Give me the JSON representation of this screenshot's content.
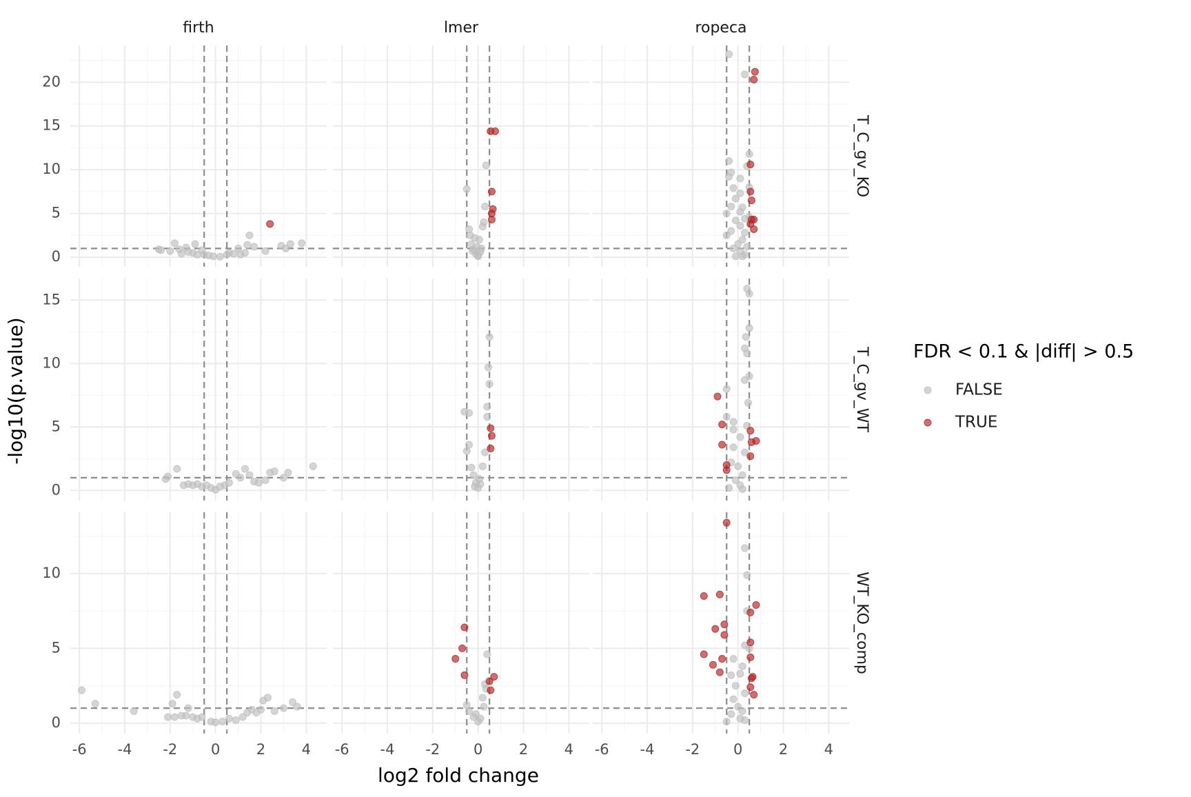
{
  "chart_data": {
    "type": "scatter",
    "x_label": "log2 fold change",
    "y_label": "-log10(p.value)",
    "legend_title": "FDR < 0.1 & |diff| > 0.5",
    "legend_position": "right",
    "grid": true,
    "series": [
      {
        "name": "FALSE",
        "color": "#bebebe"
      },
      {
        "name": "TRUE",
        "color": "#b22222"
      }
    ],
    "columns": [
      "firth",
      "lmer",
      "ropeca"
    ],
    "xlim": [
      -6.4,
      4.9
    ],
    "xticks": [
      -6,
      -4,
      -2,
      0,
      2,
      4
    ],
    "vlines": [
      -0.5,
      0.5
    ],
    "hline": 1,
    "rows": [
      {
        "label": "T_C_gv_KO",
        "ylim": [
          -1.1,
          24.2
        ],
        "yticks": [
          0,
          5,
          10,
          15,
          20
        ],
        "panels": [
          {
            "series": [
              {
                "x": [
                  -2.5,
                  -2.4,
                  -2,
                  -1.8,
                  -1.6,
                  -1.5,
                  -1.3,
                  -1.2,
                  -1,
                  -0.9,
                  -0.8,
                  -0.6,
                  -0.5,
                  -0.3,
                  -0.1,
                  0.2,
                  0.5,
                  0.6,
                  0.8,
                  1,
                  1.1,
                  1.3,
                  1.4,
                  1.5,
                  1.7,
                  2.2,
                  2.9,
                  3.1,
                  3.3,
                  3.8
                ],
                "values": [
                  0.9,
                  0.8,
                  0.7,
                  1.6,
                  0.9,
                  0.4,
                  1.1,
                  0.6,
                  0.5,
                  1.5,
                  0.3,
                  0.8,
                  0.3,
                  0.2,
                  0.1,
                  0.05,
                  0.3,
                  0.5,
                  0.4,
                  1,
                  0.3,
                  0.5,
                  1.4,
                  2.5,
                  1.2,
                  0.7,
                  1.3,
                  1,
                  1.5,
                  1.6
                ]
              },
              {
                "x": [
                  2.4
                ],
                "values": [
                  3.8
                ]
              }
            ]
          },
          {
            "series": [
              {
                "x": [
                  -0.5,
                  -0.4,
                  -0.35,
                  -0.3,
                  -0.2,
                  -0.1,
                  0,
                  0,
                  -0.05,
                  0.05,
                  0.1,
                  0.2,
                  0.25,
                  0.3,
                  0.35,
                  -0.15,
                  0.15,
                  -0.25
                ],
                "values": [
                  7.8,
                  3.2,
                  2.5,
                  1.5,
                  0.9,
                  0.4,
                  0.2,
                  0.1,
                  1.2,
                  2,
                  0.6,
                  3.5,
                  4,
                  5.8,
                  10.5,
                  2.2,
                  1,
                  0.7
                ]
              },
              {
                "x": [
                  0.55,
                  0.75,
                  0.6,
                  0.65,
                  0.6,
                  0.6
                ],
                "values": [
                  14.4,
                  14.4,
                  7.5,
                  5.5,
                  5,
                  4.3
                ]
              }
            ]
          },
          {
            "series": [
              {
                "x": [
                  -0.4,
                  0.3,
                  -0.4,
                  0.5,
                  0.4,
                  -0.3,
                  -0.4,
                  0.1,
                  -0.2,
                  0.5,
                  0.1,
                  -0.1,
                  0.2,
                  -0.3,
                  0.1,
                  -0.5,
                  0.3,
                  0.5,
                  -0.1,
                  0.1,
                  -0.3,
                  0.3,
                  -0.5,
                  0.2,
                  0,
                  -0.2,
                  0.1,
                  0.3,
                  -0.1,
                  0.2,
                  0.4
                ],
                "values": [
                  23.2,
                  20.9,
                  11,
                  11.8,
                  10.4,
                  9.7,
                  9.2,
                  9,
                  7.9,
                  8,
                  7.3,
                  6.7,
                  5.7,
                  5.8,
                  5.2,
                  5,
                  4.4,
                  4.6,
                  4.2,
                  3.6,
                  3,
                  2.8,
                  2.5,
                  2,
                  1.5,
                  1,
                  0.7,
                  0.3,
                  0.1,
                  0.1,
                  1.2
                ]
              },
              {
                "x": [
                  0.75,
                  0.7,
                  0.55,
                  0.55,
                  0.6,
                  0.7,
                  0.6,
                  0.55,
                  0.7
                ],
                "values": [
                  21.2,
                  20.3,
                  10.6,
                  7.5,
                  6.5,
                  4.3,
                  4.3,
                  3.8,
                  3.2
                ]
              }
            ]
          }
        ]
      },
      {
        "label": "T_C_gv_WT",
        "ylim": [
          -0.8,
          16.7
        ],
        "yticks": [
          0,
          5,
          10,
          15
        ],
        "panels": [
          {
            "series": [
              {
                "x": [
                  -2.2,
                  -2.1,
                  -1.7,
                  -1.4,
                  -1.2,
                  -1,
                  -0.8,
                  -0.6,
                  -0.4,
                  -0.2,
                  0,
                  0.2,
                  0.4,
                  0.6,
                  0.9,
                  1.1,
                  1.3,
                  1.5,
                  1.7,
                  1.9,
                  2.2,
                  2.4,
                  2.6,
                  3,
                  3.2,
                  4.3
                ],
                "values": [
                  0.9,
                  1.1,
                  1.7,
                  0.4,
                  0.5,
                  0.4,
                  0.5,
                  0.3,
                  0.4,
                  0.2,
                  0.05,
                  0.3,
                  0.4,
                  0.6,
                  1.3,
                  1,
                  1.7,
                  1.2,
                  0.7,
                  0.6,
                  0.8,
                  1.4,
                  1.5,
                  1,
                  1.4,
                  1.9
                ]
              },
              {
                "x": [],
                "values": []
              }
            ]
          },
          {
            "series": [
              {
                "x": [
                  -0.4,
                  -0.6,
                  -0.4,
                  -0.5,
                  -0.3,
                  -0.2,
                  -0.1,
                  0,
                  0.05,
                  0.2,
                  0.3,
                  0.4,
                  0.4,
                  0.45,
                  0.5,
                  0.5,
                  -0.15,
                  0.1
                ],
                "values": [
                  6.1,
                  6.2,
                  3.6,
                  3.1,
                  1.8,
                  1.2,
                  0.6,
                  0.2,
                  0.9,
                  1.9,
                  3,
                  6.6,
                  5.8,
                  9.7,
                  8.4,
                  12.1,
                  0.3,
                  0.5
                ]
              },
              {
                "x": [
                  0.55,
                  0.6,
                  0.55
                ],
                "values": [
                  4.9,
                  4.3,
                  3.3
                ]
              }
            ]
          },
          {
            "series": [
              {
                "x": [
                  0.4,
                  0.5,
                  0.5,
                  0.35,
                  0.3,
                  0.4,
                  0.3,
                  0.5,
                  -0.5,
                  0.45,
                  -0.5,
                  -0.2,
                  -0.2,
                  0.4,
                  0.1,
                  -0.2,
                  0.3,
                  -0.3,
                  0,
                  0.2,
                  -0.1,
                  0.1,
                  -0.4,
                  0.2
                ],
                "values": [
                  15.9,
                  15.5,
                  12.8,
                  12.1,
                  11.2,
                  10.8,
                  8.7,
                  9,
                  8,
                  6.9,
                  5.8,
                  5.4,
                  4.8,
                  5.1,
                  4.2,
                  3.4,
                  3,
                  2.2,
                  1.9,
                  1.2,
                  0.8,
                  0.4,
                  0.2,
                  0.1
                ]
              },
              {
                "x": [
                  -0.9,
                  -0.7,
                  -0.7,
                  -0.5,
                  -0.5,
                  0.6,
                  0.8,
                  0.55,
                  0.55
                ],
                "values": [
                  7.4,
                  5.2,
                  3.6,
                  2,
                  1.6,
                  3.8,
                  3.9,
                  4.7,
                  2.7
                ]
              }
            ]
          }
        ]
      },
      {
        "label": "WT_KO_comp",
        "ylim": [
          -0.7,
          14.1
        ],
        "yticks": [
          0,
          5,
          10
        ],
        "panels": [
          {
            "series": [
              {
                "x": [
                  -5.9,
                  -5.3,
                  -3.6,
                  -2.1,
                  -1.9,
                  -1.8,
                  -1.7,
                  -1.5,
                  -1.3,
                  -1.2,
                  -1,
                  -0.8,
                  -0.6,
                  -0.2,
                  0,
                  0.3,
                  0.6,
                  0.9,
                  1.2,
                  1.4,
                  1.6,
                  1.8,
                  2,
                  2.1,
                  2.3,
                  2.6,
                  3,
                  3.4,
                  3.6
                ],
                "values": [
                  2.2,
                  1.3,
                  0.8,
                  0.4,
                  1.3,
                  0.4,
                  1.9,
                  0.5,
                  0.5,
                  1,
                  0.4,
                  0.3,
                  0.4,
                  0.1,
                  0.05,
                  0.1,
                  0.3,
                  0.2,
                  0.4,
                  0.7,
                  0.9,
                  0.7,
                  0.9,
                  1.5,
                  1.7,
                  0.8,
                  1,
                  1.4,
                  1.1
                ]
              },
              {
                "x": [],
                "values": []
              }
            ]
          },
          {
            "series": [
              {
                "x": [
                  -0.5,
                  -0.4,
                  -0.2,
                  0,
                  0.1,
                  0.2,
                  0.3,
                  0.4,
                  0.35,
                  -0.1,
                  0.25
                ],
                "values": [
                  1.2,
                  0.8,
                  0.4,
                  0.1,
                  0.3,
                  1.7,
                  2.6,
                  4.6,
                  2.3,
                  0.6,
                  1.1
                ]
              },
              {
                "x": [
                  -0.6,
                  -0.7,
                  -1,
                  -0.6,
                  0.5,
                  0.7,
                  0.55
                ],
                "values": [
                  6.4,
                  5,
                  4.3,
                  3.2,
                  2.8,
                  3.1,
                  2.2
                ]
              }
            ]
          },
          {
            "series": [
              {
                "x": [
                  0.3,
                  0.4,
                  0.4,
                  0.3,
                  0.5,
                  -0.2,
                  0.2,
                  -0.3,
                  0.1,
                  -0.1,
                  0.3,
                  -0.2,
                  0,
                  0.2,
                  -0.3,
                  0.1,
                  -0.5,
                  0.3
                ],
                "values": [
                  11.7,
                  9.9,
                  7.5,
                  5.2,
                  5,
                  4.3,
                  3.8,
                  3.2,
                  3.3,
                  2.5,
                  2,
                  1.6,
                  1.1,
                  0.8,
                  0.6,
                  0.3,
                  0.1,
                  0.2
                ]
              },
              {
                "x": [
                  -0.5,
                  -1.5,
                  -0.8,
                  -1,
                  -0.6,
                  -0.6,
                  -1.5,
                  -1.1,
                  -0.7,
                  -0.8,
                  0.55,
                  0.8,
                  0.55,
                  0.55,
                  0.65,
                  0.6,
                  0.55,
                  0.7
                ],
                "values": [
                  13.4,
                  8.5,
                  8.6,
                  6.3,
                  6.6,
                  5.9,
                  4.6,
                  3.9,
                  4.3,
                  3.4,
                  7.4,
                  7.9,
                  5.4,
                  4.4,
                  3.1,
                  3,
                  2.4,
                  1.9
                ]
              }
            ]
          }
        ]
      }
    ]
  }
}
